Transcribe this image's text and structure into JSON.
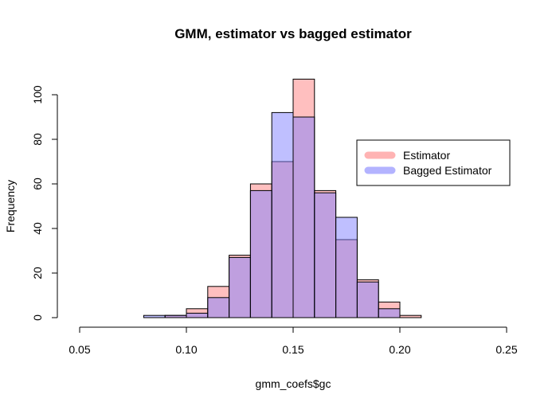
{
  "chart_data": {
    "type": "bar",
    "title": "GMM, estimator vs bagged estimator",
    "xlabel": "gmm_coefs$gc",
    "ylabel": "Frequency",
    "xlim": [
      0.05,
      0.25
    ],
    "ylim": [
      0,
      107
    ],
    "x_ticks": [
      "0.05",
      "0.10",
      "0.15",
      "0.20",
      "0.25"
    ],
    "y_ticks": [
      "0",
      "20",
      "40",
      "60",
      "80",
      "100"
    ],
    "bin_edges": [
      0.08,
      0.09,
      0.1,
      0.11,
      0.12,
      0.13,
      0.14,
      0.15,
      0.16,
      0.17,
      0.18,
      0.19,
      0.2,
      0.21
    ],
    "series": [
      {
        "name": "Estimator",
        "color": "#ff8080",
        "opacity": 0.5,
        "values": [
          0,
          1,
          4,
          14,
          28,
          60,
          70,
          107,
          57,
          35,
          17,
          7,
          1
        ]
      },
      {
        "name": "Bagged Estimator",
        "color": "#8080ff",
        "opacity": 0.5,
        "values": [
          1,
          1,
          2,
          9,
          27,
          57,
          92,
          90,
          56,
          45,
          16,
          4,
          0
        ]
      }
    ],
    "legend": {
      "position": "right",
      "entries": [
        "Estimator",
        "Bagged Estimator"
      ]
    }
  }
}
